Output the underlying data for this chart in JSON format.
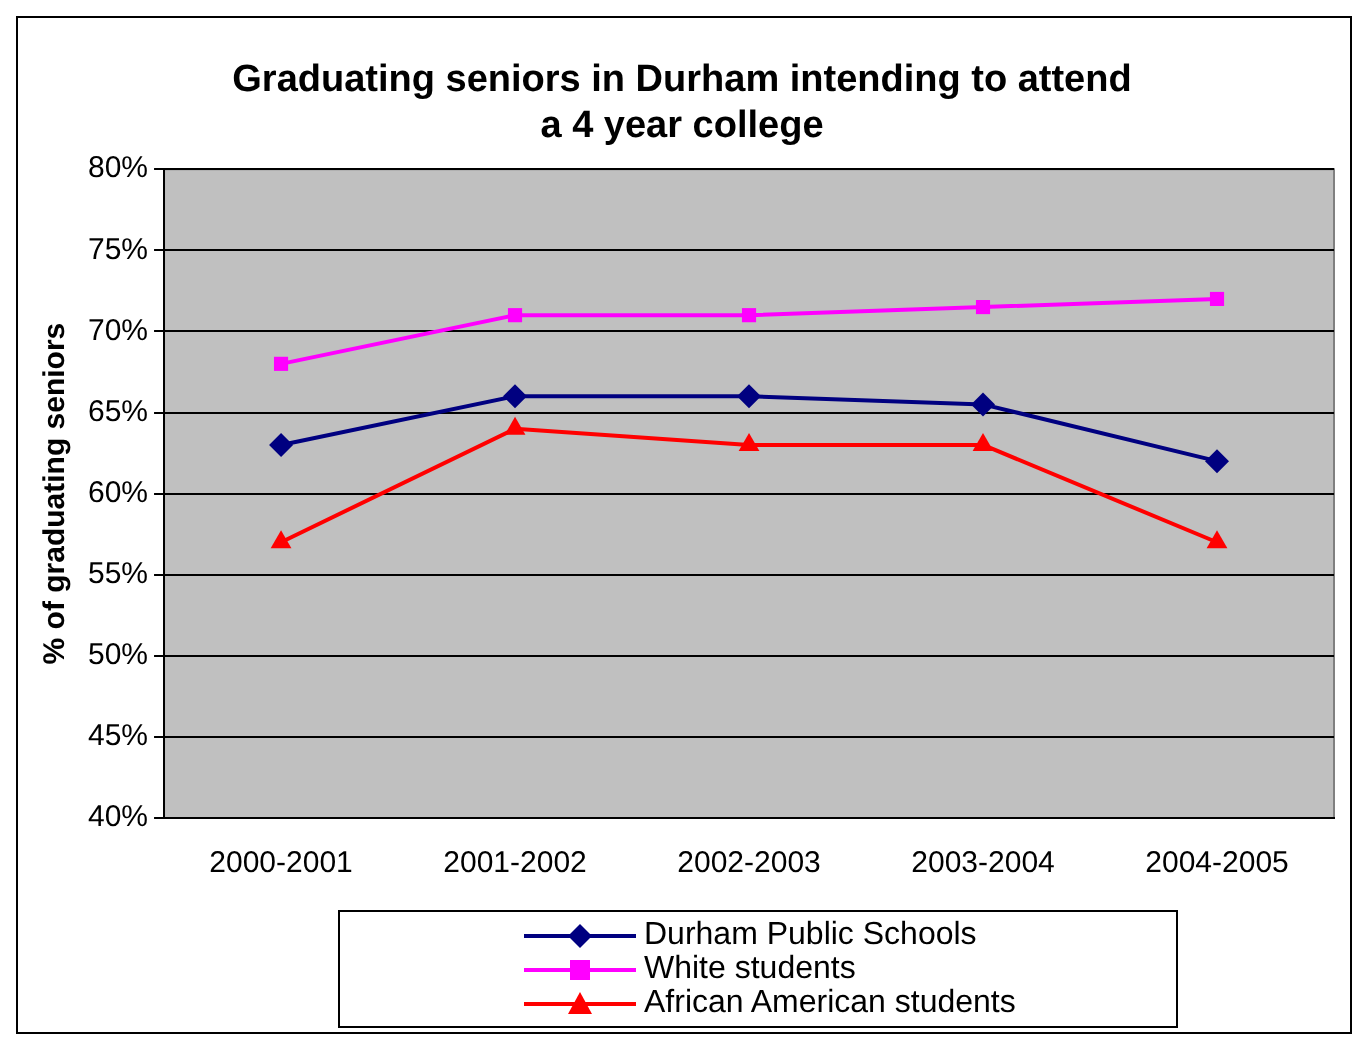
{
  "chart_data": {
    "type": "line",
    "title": "Graduating seniors in Durham intending to attend a 4 year college",
    "ylabel": "% of graduating seniors",
    "categories": [
      "2000-2001",
      "2001-2002",
      "2002-2003",
      "2003-2004",
      "2004-2005"
    ],
    "series": [
      {
        "name": "Durham Public Schools",
        "color": "#000080",
        "marker": "diamond",
        "values": [
          63,
          66,
          66,
          65.5,
          62
        ]
      },
      {
        "name": "White students",
        "color": "#ff00ff",
        "marker": "square",
        "values": [
          68,
          71,
          71,
          71.5,
          72
        ]
      },
      {
        "name": "African American students",
        "color": "#ff0000",
        "marker": "triangle",
        "values": [
          57,
          64,
          63,
          63,
          57
        ]
      }
    ],
    "ylim": [
      40,
      80
    ],
    "yticks": [
      {
        "value": 40,
        "label": "40%"
      },
      {
        "value": 45,
        "label": "45%"
      },
      {
        "value": 50,
        "label": "50%"
      },
      {
        "value": 55,
        "label": "55%"
      },
      {
        "value": 60,
        "label": "60%"
      },
      {
        "value": 65,
        "label": "65%"
      },
      {
        "value": 70,
        "label": "70%"
      },
      {
        "value": 75,
        "label": "75%"
      },
      {
        "value": 80,
        "label": "80%"
      }
    ],
    "grid": "y",
    "legend": "bottom"
  }
}
